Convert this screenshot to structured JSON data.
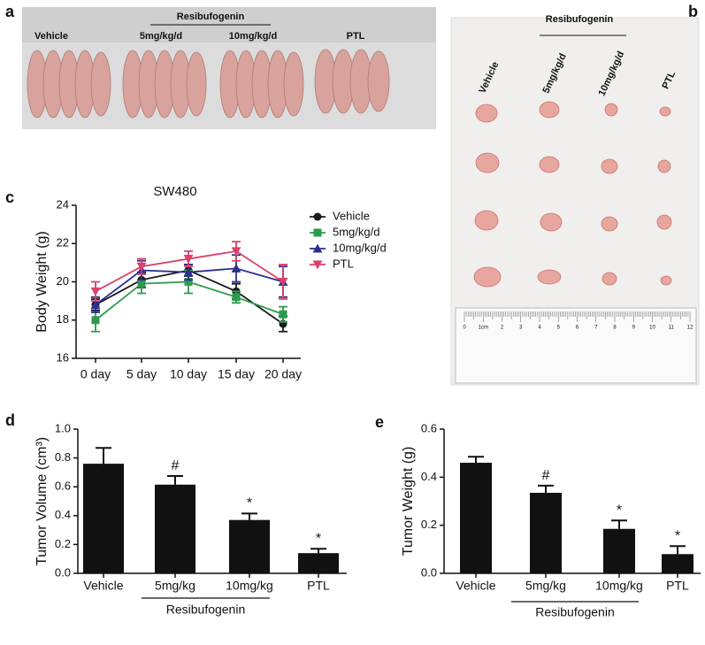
{
  "photos": {
    "a": {
      "panel": "a",
      "group_label": "Resibufogenin",
      "labels": [
        "Vehicle",
        "5mg/kg/d",
        "10mg/kg/d",
        "PTL"
      ]
    },
    "b": {
      "panel": "b",
      "group_label": "Resibufogenin",
      "labels": [
        "Vehicle",
        "5mg/kg/d",
        "10mg/kg/d",
        "PTL"
      ],
      "ruler": [
        "0",
        "1cm",
        "2",
        "3",
        "4",
        "5",
        "6",
        "7",
        "8",
        "9",
        "10",
        "11",
        "12"
      ]
    }
  },
  "chart_data": [
    {
      "type": "line",
      "panel": "c",
      "title": "SW480",
      "y_label": "Body Weight (g)",
      "categories": [
        "0 day",
        "5 day",
        "10 day",
        "15 day",
        "20 day"
      ],
      "ylim": [
        16,
        24
      ],
      "yticks": [
        16,
        18,
        20,
        22,
        24
      ],
      "series": [
        {
          "name": "Vehicle",
          "color": "#1a1a1a",
          "marker": "circle",
          "values": [
            18.8,
            20.1,
            20.6,
            19.5,
            17.8
          ],
          "errors": [
            0.3,
            0.4,
            0.3,
            0.4,
            0.4
          ]
        },
        {
          "name": "5mg/kg/d",
          "color": "#2e9a4e",
          "marker": "square",
          "values": [
            18.0,
            19.9,
            20.0,
            19.2,
            18.3
          ],
          "errors": [
            0.6,
            0.5,
            0.6,
            0.3,
            0.4
          ]
        },
        {
          "name": "10mg/kg/d",
          "color": "#2b2f8f",
          "marker": "triangle",
          "values": [
            18.8,
            20.6,
            20.5,
            20.7,
            20.0
          ],
          "errors": [
            0.4,
            0.5,
            0.4,
            0.7,
            0.8
          ]
        },
        {
          "name": "PTL",
          "color": "#d9416a",
          "marker": "triangle-down",
          "values": [
            19.5,
            20.8,
            21.2,
            21.6,
            20.0
          ],
          "errors": [
            0.5,
            0.4,
            0.4,
            0.5,
            0.9
          ]
        }
      ]
    },
    {
      "type": "bar",
      "panel": "d",
      "y_label": "Tumor Volume (cm³)",
      "group_label": "Resibufogenin",
      "categories": [
        "Vehicle",
        "5mg/kg",
        "10mg/kg",
        "PTL"
      ],
      "values": [
        0.76,
        0.615,
        0.37,
        0.14
      ],
      "errors": [
        0.11,
        0.06,
        0.045,
        0.03
      ],
      "annotations": [
        null,
        "#",
        "*",
        "*"
      ],
      "color": "#111111",
      "ylim": [
        0,
        1.0
      ],
      "yticks": [
        {
          "value": 0,
          "label": "0.0"
        },
        0.2,
        0.4,
        0.6,
        0.8,
        {
          "value": 1.0,
          "label": "1.0"
        }
      ]
    },
    {
      "type": "bar",
      "panel": "e",
      "y_label": "Tumor Weight (g)",
      "group_label": "Resibufogenin",
      "categories": [
        "Vehicle",
        "5mg/kg",
        "10mg/kg",
        "PTL"
      ],
      "values": [
        0.46,
        0.335,
        0.185,
        0.08
      ],
      "errors": [
        0.025,
        0.03,
        0.035,
        0.033
      ],
      "annotations": [
        null,
        "#",
        "*",
        "*"
      ],
      "color": "#111111",
      "ylim": [
        0,
        0.6
      ],
      "yticks": [
        {
          "value": 0,
          "label": "0.0"
        },
        0.2,
        0.4,
        0.6
      ]
    }
  ]
}
